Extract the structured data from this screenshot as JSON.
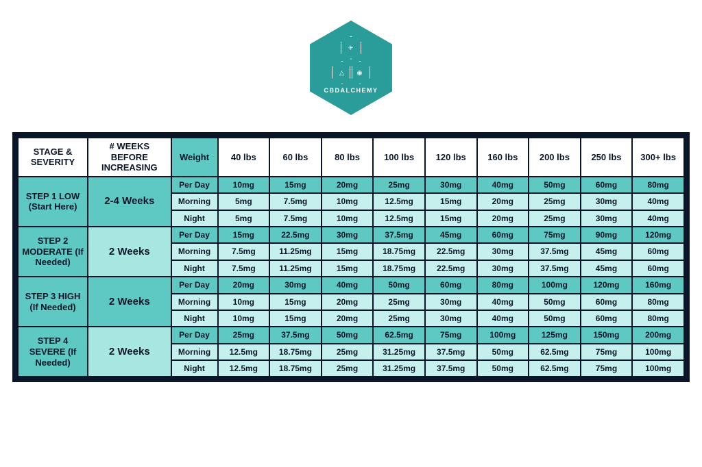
{
  "brand": {
    "line1": "CBD",
    "line2": "ALCHEMY"
  },
  "colors": {
    "border": "#0a1628",
    "teal_medium": "#5ec9c3",
    "teal_light": "#a8e6e2",
    "teal_lighter": "#c5f0ed",
    "white": "#ffffff",
    "text": "#0a1628",
    "logo_bg": "#2a9d9b"
  },
  "headers": {
    "stage": "STAGE & SEVERITY",
    "weeks": "# WEEKS BEFORE INCREASING",
    "weight_label": "Weight",
    "weights": [
      "40 lbs",
      "60 lbs",
      "80 lbs",
      "100 lbs",
      "120 lbs",
      "160 lbs",
      "200 lbs",
      "250 lbs",
      "300+ lbs"
    ]
  },
  "row_labels": {
    "perday": "Per Day",
    "morning": "Morning",
    "night": "Night"
  },
  "steps": [
    {
      "stage": "STEP 1 LOW (Start Here)",
      "weeks": "2-4 Weeks",
      "weeks_class": "weeks-cell-alt",
      "perday": [
        "10mg",
        "15mg",
        "20mg",
        "25mg",
        "30mg",
        "40mg",
        "50mg",
        "60mg",
        "80mg"
      ],
      "morning": [
        "5mg",
        "7.5mg",
        "10mg",
        "12.5mg",
        "15mg",
        "20mg",
        "25mg",
        "30mg",
        "40mg"
      ],
      "night": [
        "5mg",
        "7.5mg",
        "10mg",
        "12.5mg",
        "15mg",
        "20mg",
        "25mg",
        "30mg",
        "40mg"
      ]
    },
    {
      "stage": "STEP 2 MODERATE (If Needed)",
      "weeks": "2 Weeks",
      "weeks_class": "weeks-cell",
      "perday": [
        "15mg",
        "22.5mg",
        "30mg",
        "37.5mg",
        "45mg",
        "60mg",
        "75mg",
        "90mg",
        "120mg"
      ],
      "morning": [
        "7.5mg",
        "11.25mg",
        "15mg",
        "18.75mg",
        "22.5mg",
        "30mg",
        "37.5mg",
        "45mg",
        "60mg"
      ],
      "night": [
        "7.5mg",
        "11.25mg",
        "15mg",
        "18.75mg",
        "22.5mg",
        "30mg",
        "37.5mg",
        "45mg",
        "60mg"
      ]
    },
    {
      "stage": "STEP 3 HIGH (If Needed)",
      "weeks": "2 Weeks",
      "weeks_class": "weeks-cell-alt",
      "perday": [
        "20mg",
        "30mg",
        "40mg",
        "50mg",
        "60mg",
        "80mg",
        "100mg",
        "120mg",
        "160mg"
      ],
      "morning": [
        "10mg",
        "15mg",
        "20mg",
        "25mg",
        "30mg",
        "40mg",
        "50mg",
        "60mg",
        "80mg"
      ],
      "night": [
        "10mg",
        "15mg",
        "20mg",
        "25mg",
        "30mg",
        "40mg",
        "50mg",
        "60mg",
        "80mg"
      ]
    },
    {
      "stage": "STEP 4 SEVERE (If Needed)",
      "weeks": "2 Weeks",
      "weeks_class": "weeks-cell",
      "perday": [
        "25mg",
        "37.5mg",
        "50mg",
        "62.5mg",
        "75mg",
        "100mg",
        "125mg",
        "150mg",
        "200mg"
      ],
      "morning": [
        "12.5mg",
        "18.75mg",
        "25mg",
        "31.25mg",
        "37.5mg",
        "50mg",
        "62.5mg",
        "75mg",
        "100mg"
      ],
      "night": [
        "12.5mg",
        "18.75mg",
        "25mg",
        "31.25mg",
        "37.5mg",
        "50mg",
        "62.5mg",
        "75mg",
        "100mg"
      ]
    }
  ]
}
